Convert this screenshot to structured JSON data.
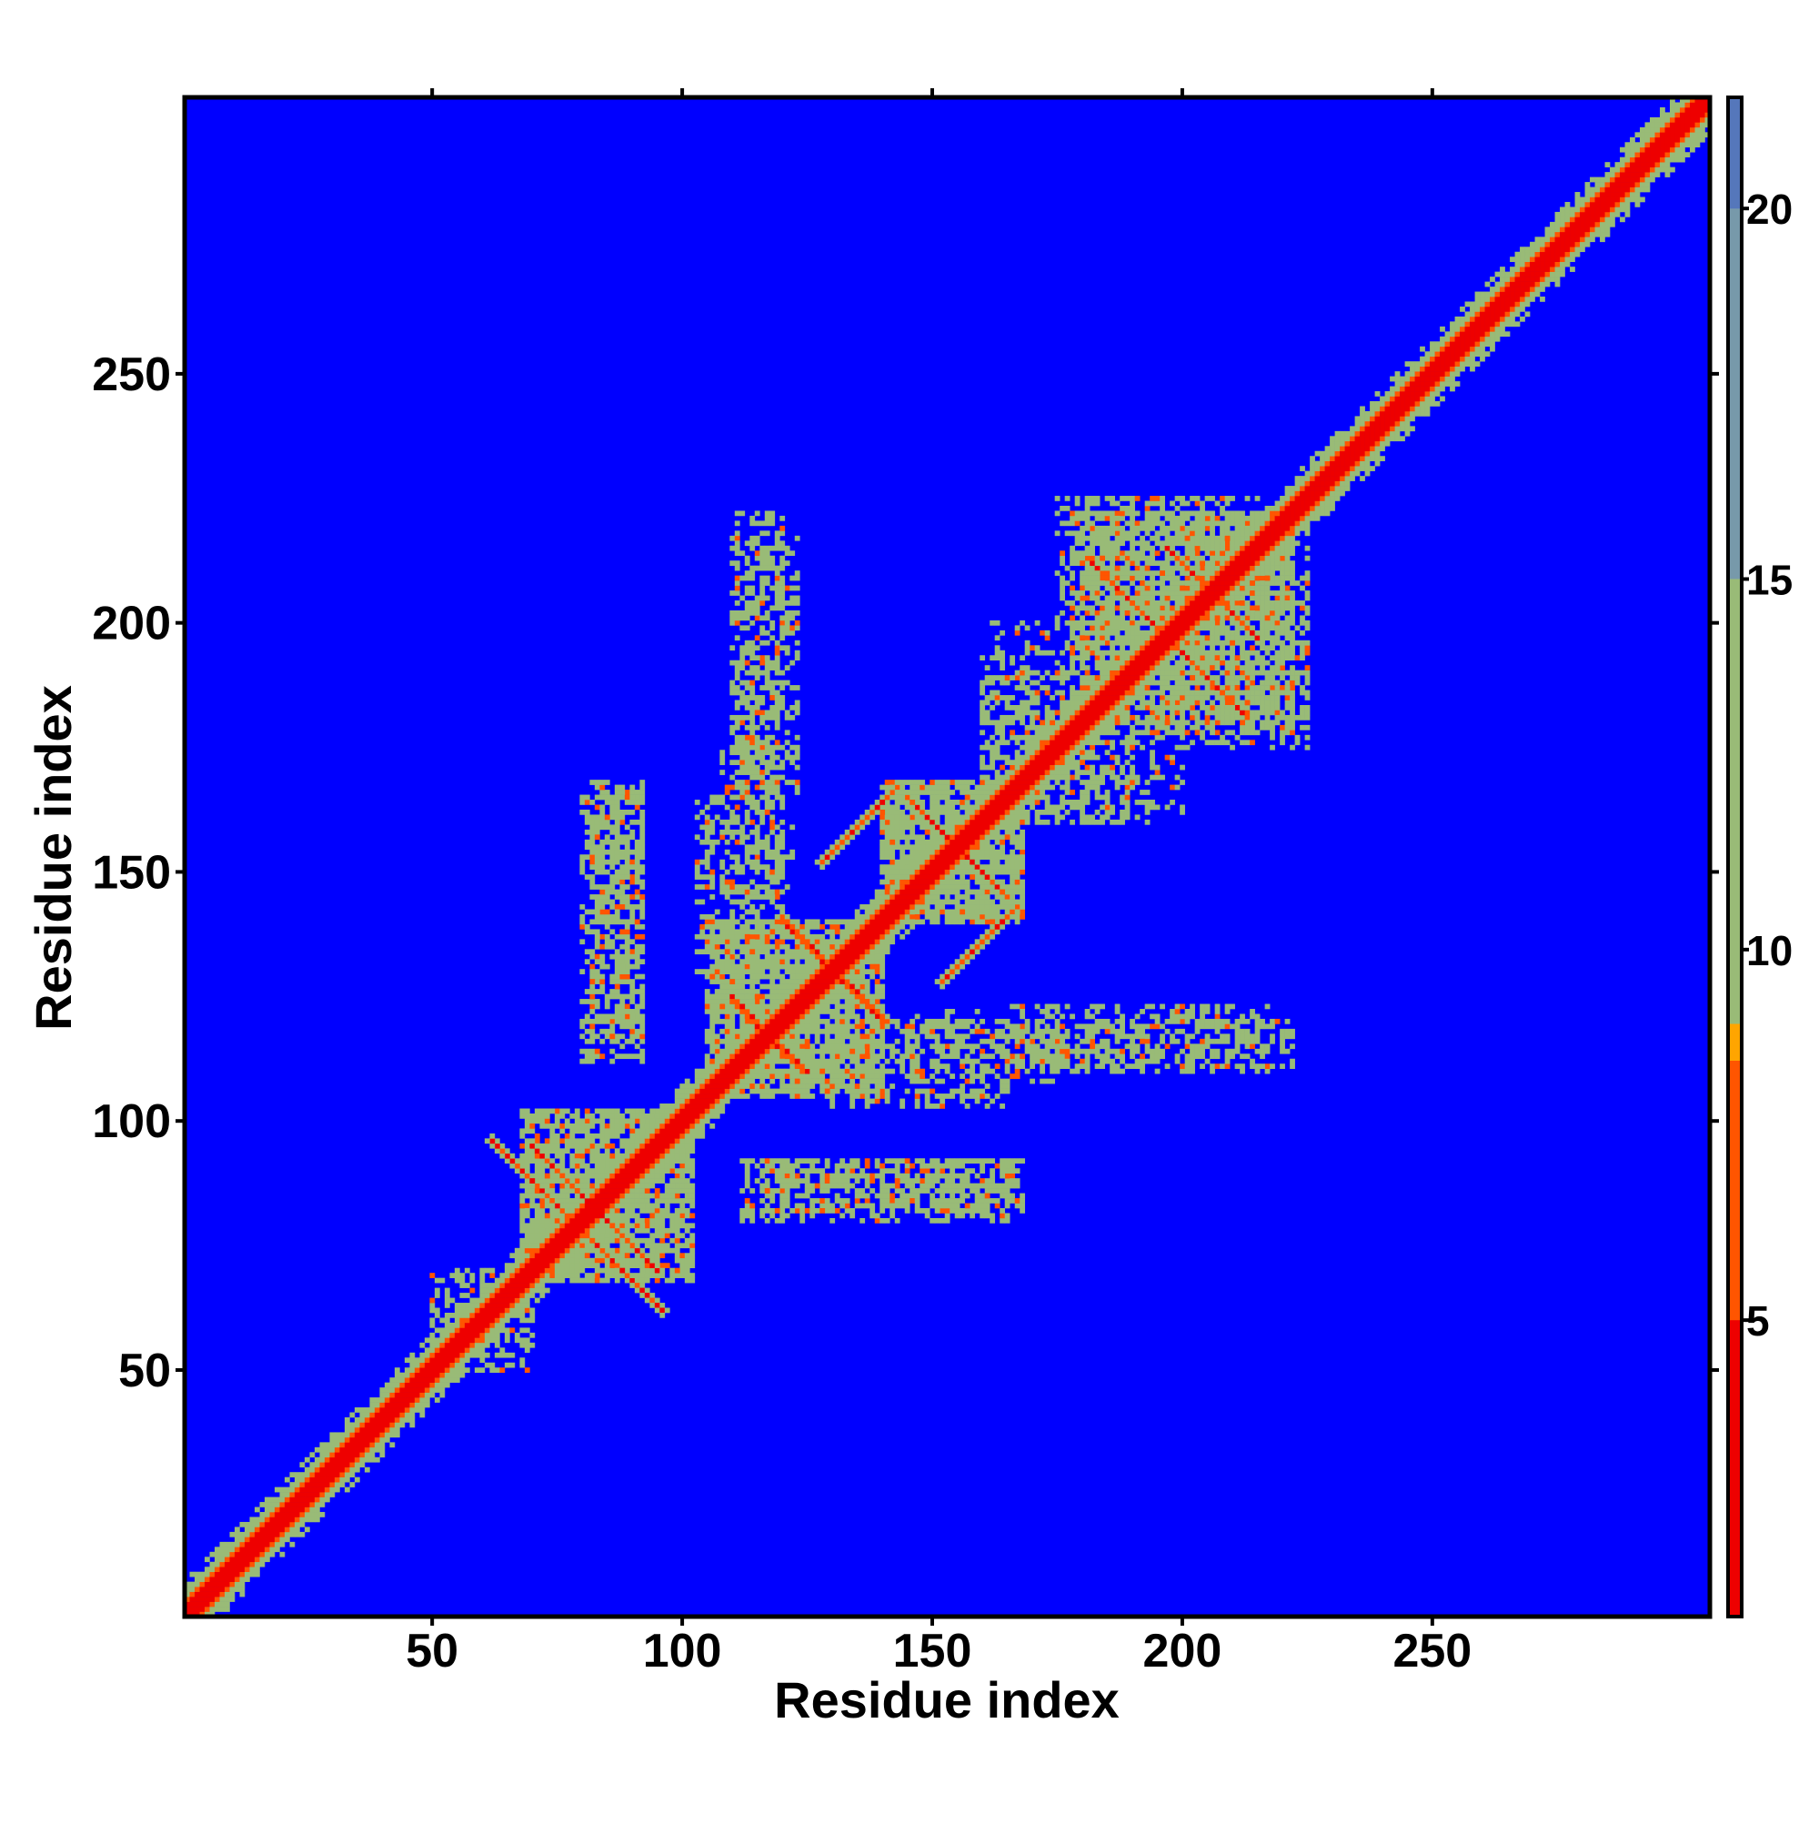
{
  "chart_data": {
    "type": "heatmap",
    "title": "",
    "xlabel": "Residue index",
    "ylabel": "Residue index",
    "n_residues": 305,
    "xlim": [
      1,
      305
    ],
    "ylim": [
      1,
      305
    ],
    "x_ticks": [
      50,
      100,
      150,
      200,
      250
    ],
    "y_ticks": [
      50,
      100,
      150,
      200,
      250
    ],
    "colorbar": {
      "ticks": [
        5,
        10,
        15,
        20
      ],
      "range": [
        1,
        21.5
      ],
      "palette": [
        {
          "value": 1,
          "color": "#ee0000"
        },
        {
          "value": 5,
          "color": "#ff5500"
        },
        {
          "value": 8.5,
          "color": "#ffa500"
        },
        {
          "value": 9,
          "color": "#99bb77"
        },
        {
          "value": 15,
          "color": "#7799aa"
        },
        {
          "value": 20,
          "color": "#5577bb"
        },
        {
          "value": 21.5,
          "color": "#0000ff"
        }
      ]
    },
    "background_value": 21.5,
    "background_color": "#0000ff",
    "diagonal_band": {
      "halfwidth": 4,
      "core_color": "#ee0000",
      "halo_color": "#99bb77"
    },
    "helix_contact_lines": [
      {
        "x": [
          70,
          95
        ],
        "y": [
          95,
          70
        ]
      },
      {
        "x": [
          78,
          96
        ],
        "y": [
          80,
          62
        ]
      },
      {
        "x": [
          110,
          125
        ],
        "y": [
          124,
          110
        ]
      },
      {
        "x": [
          120,
          140
        ],
        "y": [
          141,
          120
        ]
      },
      {
        "x": [
          145,
          160
        ],
        "y": [
          165,
          150
        ]
      },
      {
        "x": [
          152,
          167
        ],
        "y": [
          128,
          143
        ]
      },
      {
        "x": [
          181,
          197
        ],
        "y": [
          213,
          197
        ]
      },
      {
        "x": [
          200,
          215
        ],
        "y": [
          212,
          197
        ]
      }
    ],
    "contact_blocks": [
      {
        "x": [
          68,
          102
        ],
        "y": [
          68,
          102
        ],
        "density": 0.55
      },
      {
        "x": [
          105,
          140
        ],
        "y": [
          105,
          140
        ],
        "density": 0.55
      },
      {
        "x": [
          140,
          168
        ],
        "y": [
          140,
          168
        ],
        "density": 0.55
      },
      {
        "x": [
          180,
          222
        ],
        "y": [
          178,
          222
        ],
        "density": 0.45
      },
      {
        "x": [
          200,
          225
        ],
        "y": [
          175,
          215
        ],
        "density": 0.4
      },
      {
        "x": [
          56,
          70
        ],
        "y": [
          50,
          68
        ],
        "density": 0.35
      },
      {
        "x": [
          80,
          92
        ],
        "y": [
          112,
          166
        ],
        "density": 0.4
      },
      {
        "x": [
          103,
          120
        ],
        "y": [
          130,
          165
        ],
        "density": 0.4
      },
      {
        "x": [
          110,
          123
        ],
        "y": [
          165,
          218
        ],
        "density": 0.35
      },
      {
        "x": [
          117,
          168
        ],
        "y": [
          82,
          92
        ],
        "density": 0.45
      },
      {
        "x": [
          145,
          175
        ],
        "y": [
          108,
          122
        ],
        "density": 0.3
      },
      {
        "x": [
          170,
          222
        ],
        "y": [
          111,
          120
        ],
        "density": 0.35
      },
      {
        "x": [
          160,
          190
        ],
        "y": [
          160,
          200
        ],
        "density": 0.3
      }
    ]
  }
}
